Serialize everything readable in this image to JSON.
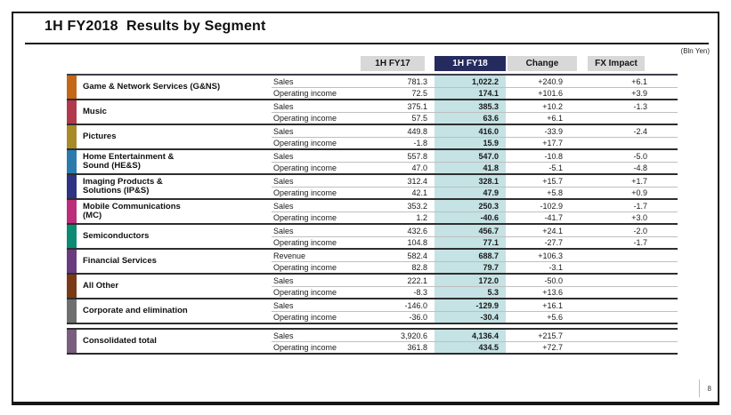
{
  "page": {
    "title": "1H FY2018  Results by Segment",
    "unit_note": "(Bln Yen)",
    "page_number": "8"
  },
  "table": {
    "column_headers": [
      "1H FY17",
      "1H FY18",
      "Change",
      "FX Impact"
    ],
    "colors": {
      "fy18_header_bg": "#252B5E",
      "fy18_header_text": "#FFFFFF",
      "inactive_header_bg": "#D8D8D8",
      "fy18_highlight": "#C5E2E4"
    },
    "segments": [
      {
        "name": "Game & Network Services (G&NS)",
        "color": "#C36718",
        "rows": [
          {
            "label": "Sales",
            "fy17": "781.3",
            "fy18": "1,022.2",
            "change": "+240.9",
            "fx": "+6.1"
          },
          {
            "label": "Operating income",
            "fy17": "72.5",
            "fy18": "174.1",
            "change": "+101.6",
            "fx": "+3.9"
          }
        ]
      },
      {
        "name": "Music",
        "color": "#B03A4C",
        "rows": [
          {
            "label": "Sales",
            "fy17": "375.1",
            "fy18": "385.3",
            "change": "+10.2",
            "fx": "-1.3"
          },
          {
            "label": "Operating income",
            "fy17": "57.5",
            "fy18": "63.6",
            "change": "+6.1",
            "fx": ""
          }
        ]
      },
      {
        "name": "Pictures",
        "color": "#A98A28",
        "rows": [
          {
            "label": "Sales",
            "fy17": "449.8",
            "fy18": "416.0",
            "change": "-33.9",
            "fx": "-2.4"
          },
          {
            "label": "Operating income",
            "fy17": "-1.8",
            "fy18": "15.9",
            "change": "+17.7",
            "fx": ""
          }
        ]
      },
      {
        "name": "Home Entertainment &\nSound (HE&S)",
        "color": "#2B7BAE",
        "rows": [
          {
            "label": "Sales",
            "fy17": "557.8",
            "fy18": "547.0",
            "change": "-10.8",
            "fx": "-5.0"
          },
          {
            "label": "Operating income",
            "fy17": "47.0",
            "fy18": "41.8",
            "change": "-5.1",
            "fx": "-4.8"
          }
        ]
      },
      {
        "name": "Imaging Products &\nSolutions (IP&S)",
        "color": "#2E3382",
        "rows": [
          {
            "label": "Sales",
            "fy17": "312.4",
            "fy18": "328.1",
            "change": "+15.7",
            "fx": "+1.7"
          },
          {
            "label": "Operating income",
            "fy17": "42.1",
            "fy18": "47.9",
            "change": "+5.8",
            "fx": "+0.9"
          }
        ]
      },
      {
        "name": "Mobile Communications\n(MC)",
        "color": "#BC2D7C",
        "rows": [
          {
            "label": "Sales",
            "fy17": "353.2",
            "fy18": "250.3",
            "change": "-102.9",
            "fx": "-1.7"
          },
          {
            "label": "Operating income",
            "fy17": "1.2",
            "fy18": "-40.6",
            "change": "-41.7",
            "fx": "+3.0"
          }
        ]
      },
      {
        "name": "Semiconductors",
        "color": "#0C8A73",
        "rows": [
          {
            "label": "Sales",
            "fy17": "432.6",
            "fy18": "456.7",
            "change": "+24.1",
            "fx": "-2.0"
          },
          {
            "label": "Operating income",
            "fy17": "104.8",
            "fy18": "77.1",
            "change": "-27.7",
            "fx": "-1.7"
          }
        ]
      },
      {
        "name": "Financial Services",
        "color": "#693C80",
        "rows": [
          {
            "label": "Revenue",
            "fy17": "582.4",
            "fy18": "688.7",
            "change": "+106.3",
            "fx": ""
          },
          {
            "label": "Operating income",
            "fy17": "82.8",
            "fy18": "79.7",
            "change": "-3.1",
            "fx": ""
          }
        ]
      },
      {
        "name": "All Other",
        "color": "#7A3A16",
        "rows": [
          {
            "label": "Sales",
            "fy17": "222.1",
            "fy18": "172.0",
            "change": "-50.0",
            "fx": ""
          },
          {
            "label": "Operating income",
            "fy17": "-8.3",
            "fy18": "5.3",
            "change": "+13.6",
            "fx": ""
          }
        ]
      },
      {
        "name": "Corporate and elimination",
        "color": "#6F6F6F",
        "rows": [
          {
            "label": "Sales",
            "fy17": "-146.0",
            "fy18": "-129.9",
            "change": "+16.1",
            "fx": ""
          },
          {
            "label": "Operating income",
            "fy17": "-36.0",
            "fy18": "-30.4",
            "change": "+5.6",
            "fx": ""
          }
        ]
      },
      {
        "name": "Consolidated total",
        "color": "#7A5E7D",
        "gap_before": true,
        "rows": [
          {
            "label": "Sales",
            "fy17": "3,920.6",
            "fy18": "4,136.4",
            "change": "+215.7",
            "fx": ""
          },
          {
            "label": "Operating income",
            "fy17": "361.8",
            "fy18": "434.5",
            "change": "+72.7",
            "fx": ""
          }
        ]
      }
    ]
  }
}
